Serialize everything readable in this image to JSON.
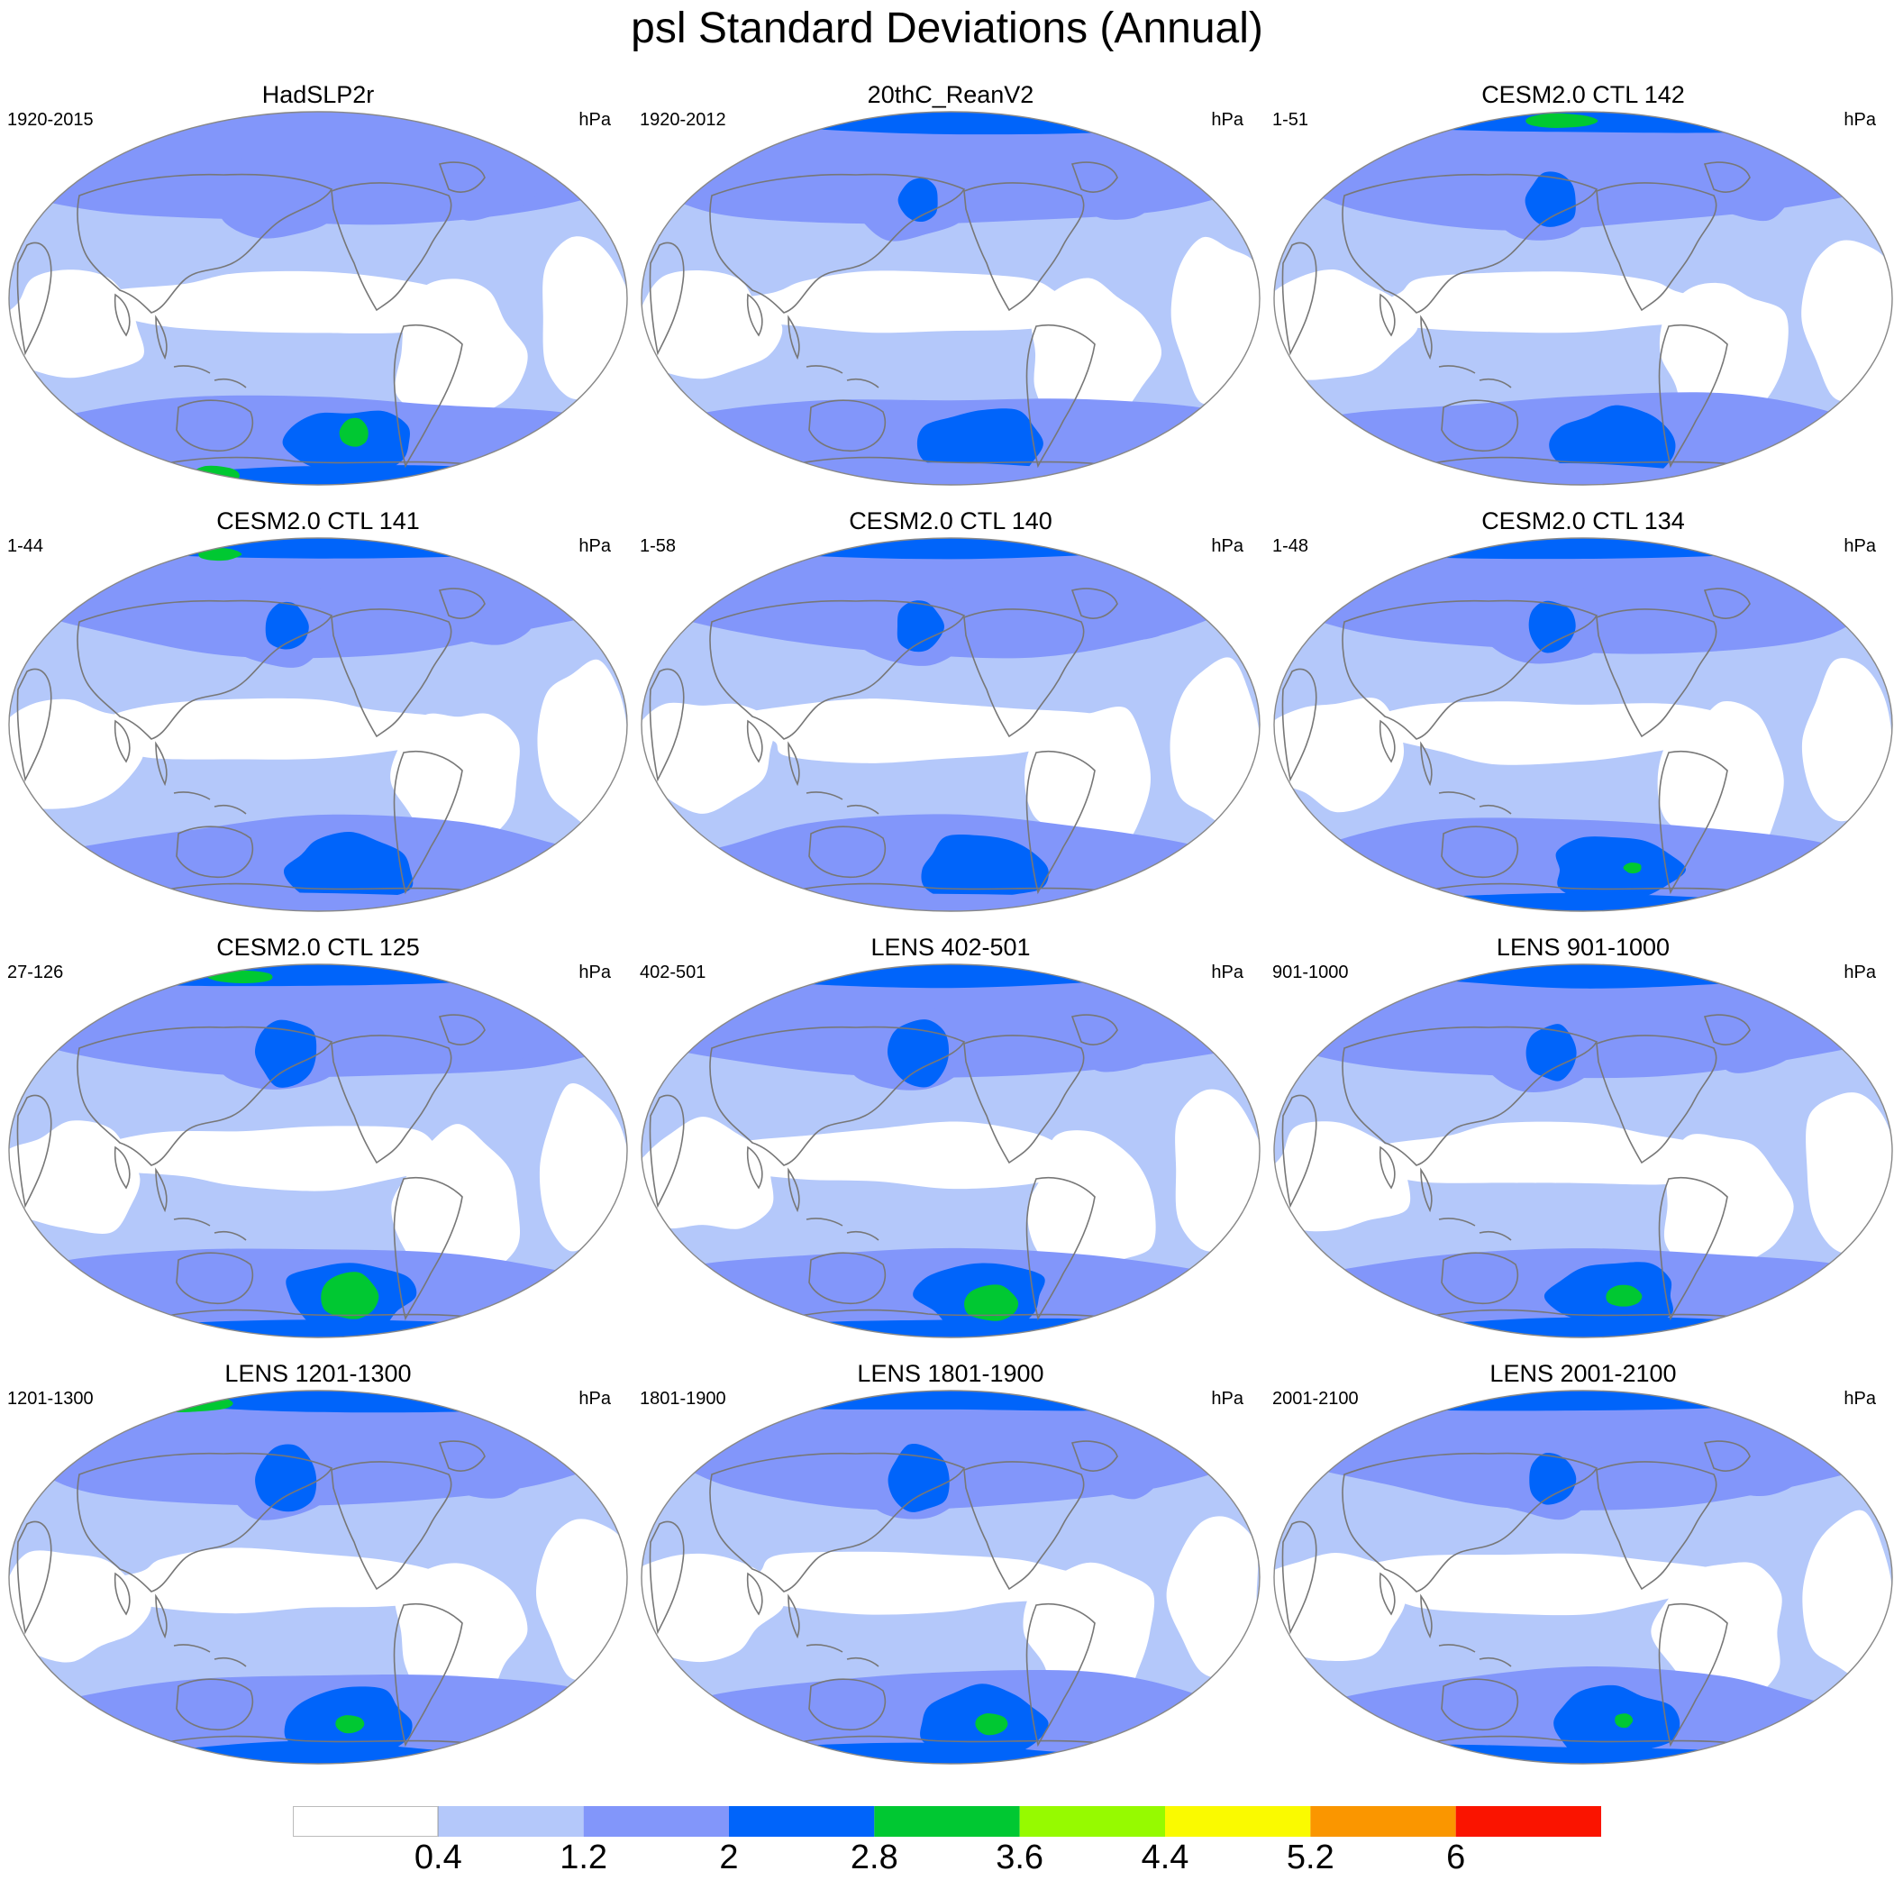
{
  "figure": {
    "title": "psl Standard Deviations (Annual)"
  },
  "panels": [
    {
      "title": "HadSLP2r",
      "left_text": "1920-2015",
      "right_text": "hPa"
    },
    {
      "title": "20thC_ReanV2",
      "left_text": "1920-2012",
      "right_text": "hPa"
    },
    {
      "title": "CESM2.0 CTL 142",
      "left_text": "1-51",
      "right_text": "hPa"
    },
    {
      "title": "CESM2.0 CTL 141",
      "left_text": "1-44",
      "right_text": "hPa"
    },
    {
      "title": "CESM2.0 CTL 140",
      "left_text": "1-58",
      "right_text": "hPa"
    },
    {
      "title": "CESM2.0 CTL 134",
      "left_text": "1-48",
      "right_text": "hPa"
    },
    {
      "title": "CESM2.0 CTL 125",
      "left_text": "27-126",
      "right_text": "hPa"
    },
    {
      "title": "LENS 402-501",
      "left_text": "402-501",
      "right_text": "hPa"
    },
    {
      "title": "LENS 901-1000",
      "left_text": "901-1000",
      "right_text": "hPa"
    },
    {
      "title": "LENS 1201-1300",
      "left_text": "1201-1300",
      "right_text": "hPa"
    },
    {
      "title": "LENS 1801-1900",
      "left_text": "1801-1900",
      "right_text": "hPa"
    },
    {
      "title": "LENS 2001-2100",
      "left_text": "2001-2100",
      "right_text": "hPa"
    }
  ],
  "colorbar": {
    "colors": [
      "#ffffff",
      "#b4c8fa",
      "#8296fa",
      "#0064fa",
      "#00c832",
      "#96fa00",
      "#fafa00",
      "#fa9600",
      "#fa1400"
    ],
    "labels": [
      "0.4",
      "1.2",
      "2",
      "2.8",
      "3.6",
      "4.4",
      "5.2",
      "6"
    ]
  },
  "palette": {
    "white": "#ffffff",
    "light": "#b4c8fa",
    "medium": "#8296fa",
    "dark": "#0064fa",
    "green": "#00c832",
    "coast": "#777777"
  }
}
